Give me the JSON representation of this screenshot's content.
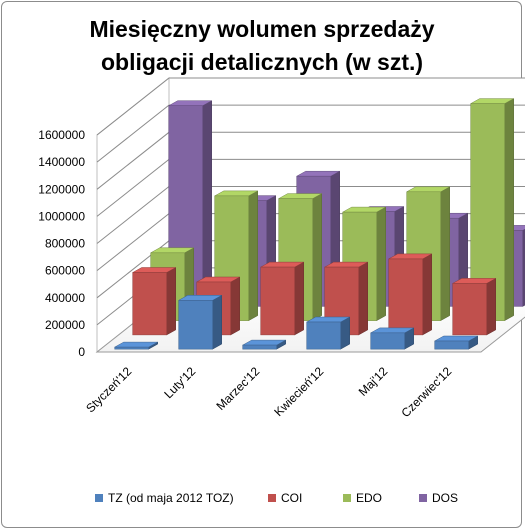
{
  "chart_data": {
    "type": "bar",
    "subtype": "3d-column",
    "title_lines": [
      "Miesięczny wolumen sprzedaży",
      "obligacji detalicznych (w szt.)"
    ],
    "categories": [
      "Styczeń'12",
      "Luty'12",
      "Marzec'12",
      "Kwiecień'12",
      "Maj'12",
      "Czerwiec'12"
    ],
    "series": [
      {
        "name": "TZ (od maja 2012 TOZ)",
        "color": "#4f81bd",
        "values": [
          10000,
          360000,
          30000,
          200000,
          120000,
          60000
        ]
      },
      {
        "name": "COI",
        "color": "#c0504d",
        "values": [
          460000,
          390000,
          500000,
          500000,
          560000,
          380000
        ]
      },
      {
        "name": "EDO",
        "color": "#9bbb59",
        "values": [
          500000,
          920000,
          900000,
          800000,
          950000,
          1600000
        ]
      },
      {
        "name": "DOS",
        "color": "#8064a2",
        "values": [
          1480000,
          780000,
          960000,
          700000,
          650000,
          560000
        ]
      }
    ],
    "y_ticks": [
      "0",
      "200000",
      "400000",
      "600000",
      "800000",
      "1000000",
      "1200000",
      "1400000",
      "1600000"
    ],
    "ylim": [
      0,
      1600000
    ],
    "grid": true,
    "legend_position": "bottom"
  }
}
